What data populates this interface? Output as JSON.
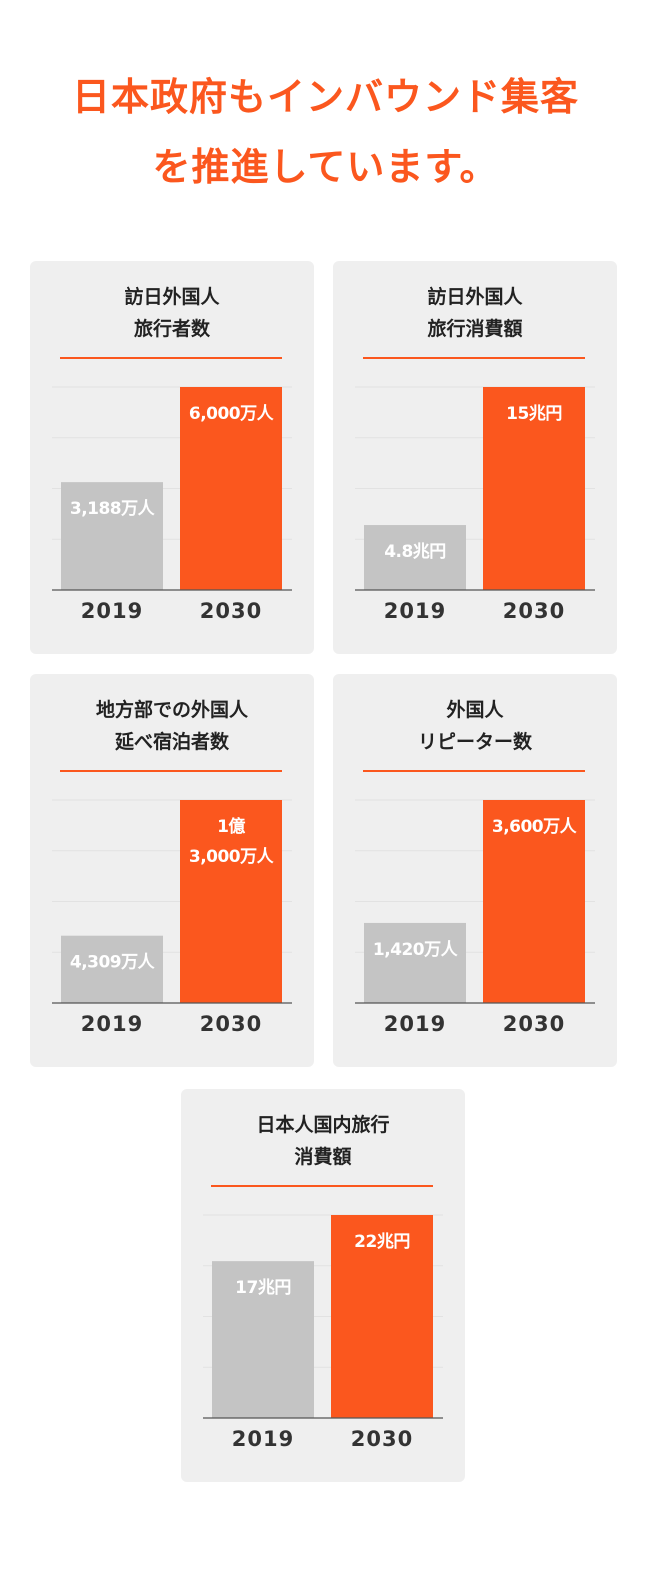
{
  "headline": {
    "line1": "日本政府もインバウンド集客",
    "line2": "を推進しています。"
  },
  "colors": {
    "accent": "#fb571e",
    "bar_2019": "#c4c4c4",
    "bar_2030": "#fb571e",
    "card_bg": "#efefef",
    "text": "#222222",
    "bar_label": "#ffffff"
  },
  "chart_data": [
    {
      "type": "bar",
      "title_lines": [
        "訪日外国人",
        "旅行者数"
      ],
      "categories": [
        "2019",
        "2030"
      ],
      "values": [
        3188,
        6000
      ],
      "value_labels": [
        [
          "3,188万人"
        ],
        [
          "6,000万人"
        ]
      ],
      "unit": "万人"
    },
    {
      "type": "bar",
      "title_lines": [
        "訪日外国人",
        "旅行消費額"
      ],
      "categories": [
        "2019",
        "2030"
      ],
      "values": [
        4.8,
        15
      ],
      "value_labels": [
        [
          "4.8兆円"
        ],
        [
          "15兆円"
        ]
      ],
      "unit": "兆円"
    },
    {
      "type": "bar",
      "title_lines": [
        "地方部での外国人",
        "延べ宿泊者数"
      ],
      "categories": [
        "2019",
        "2030"
      ],
      "values": [
        4309,
        13000
      ],
      "value_labels": [
        [
          "4,309万人"
        ],
        [
          "1億",
          "3,000万人"
        ]
      ],
      "unit": "万人"
    },
    {
      "type": "bar",
      "title_lines": [
        "外国人",
        "リピーター数"
      ],
      "categories": [
        "2019",
        "2030"
      ],
      "values": [
        1420,
        3600
      ],
      "value_labels": [
        [
          "1,420万人"
        ],
        [
          "3,600万人"
        ]
      ],
      "unit": "万人"
    },
    {
      "type": "bar",
      "title_lines": [
        "日本人国内旅行",
        "消費額"
      ],
      "categories": [
        "2019",
        "2030"
      ],
      "values": [
        17,
        22
      ],
      "value_labels": [
        [
          "17兆円"
        ],
        [
          "22兆円"
        ]
      ],
      "unit": "兆円"
    }
  ]
}
